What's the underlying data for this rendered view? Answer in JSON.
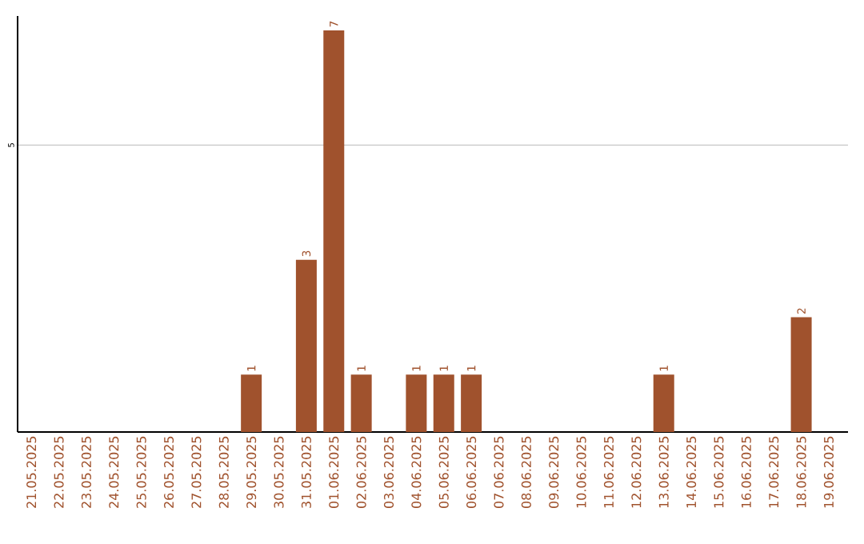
{
  "chart_data": {
    "type": "bar",
    "categories": [
      "21.05.2025",
      "22.05.2025",
      "23.05.2025",
      "24.05.2025",
      "25.05.2025",
      "26.05.2025",
      "27.05.2025",
      "28.05.2025",
      "29.05.2025",
      "30.05.2025",
      "31.05.2025",
      "01.06.2025",
      "02.06.2025",
      "03.06.2025",
      "04.06.2025",
      "05.06.2025",
      "06.06.2025",
      "07.06.2025",
      "08.06.2025",
      "09.06.2025",
      "10.06.2025",
      "11.06.2025",
      "12.06.2025",
      "13.06.2025",
      "14.06.2025",
      "15.06.2025",
      "16.06.2025",
      "17.06.2025",
      "18.06.2025",
      "19.06.2025"
    ],
    "values": [
      0,
      0,
      0,
      0,
      0,
      0,
      0,
      0,
      1,
      0,
      3,
      7,
      1,
      0,
      1,
      1,
      1,
      0,
      0,
      0,
      0,
      0,
      0,
      1,
      0,
      0,
      0,
      0,
      2,
      0
    ],
    "value_labels": [
      null,
      null,
      null,
      null,
      null,
      null,
      null,
      null,
      "1",
      null,
      "3",
      "7",
      "1",
      null,
      "1",
      "1",
      "1",
      null,
      null,
      null,
      null,
      null,
      null,
      "1",
      null,
      null,
      null,
      null,
      "2",
      null
    ],
    "color": "#a0522d",
    "ylim": [
      0,
      7.25
    ],
    "yticks": [
      5
    ],
    "grid": "y"
  }
}
